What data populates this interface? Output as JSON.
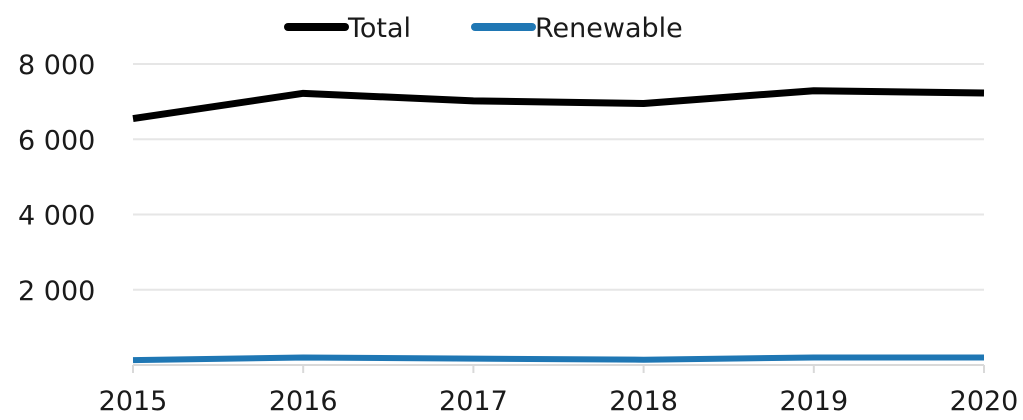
{
  "chart_data": {
    "type": "line",
    "title": "",
    "xlabel": "",
    "ylabel": "",
    "x": [
      2015,
      2016,
      2017,
      2018,
      2019,
      2020
    ],
    "ylim": [
      0,
      8000
    ],
    "yticks": [
      2000,
      4000,
      6000,
      8000
    ],
    "ytick_labels": [
      "2 000",
      "4 000",
      "6 000",
      "8 000"
    ],
    "xtick_labels": [
      "2015",
      "2016",
      "2017",
      "2018",
      "2019",
      "2020"
    ],
    "grid": "horizontal",
    "legend": "top-center",
    "series": [
      {
        "name": "Total",
        "color": "#000000",
        "values": [
          6550,
          7220,
          7020,
          6950,
          7290,
          7230
        ]
      },
      {
        "name": "Renewable",
        "color": "#1f77b4",
        "values": [
          130,
          200,
          170,
          140,
          200,
          200
        ]
      }
    ]
  }
}
